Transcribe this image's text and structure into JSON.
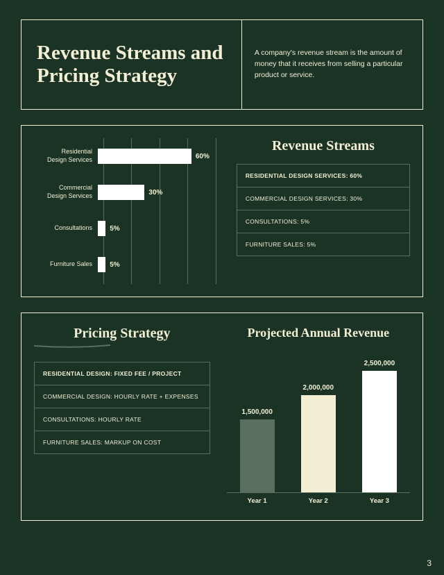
{
  "page_number": "3",
  "colors": {
    "background": "#1a3325",
    "text": "#f2efd5",
    "border": "#f2efd5",
    "inner_border": "#5a6e5f",
    "bar_white": "#ffffff"
  },
  "header": {
    "title": "Revenue Streams and Pricing Strategy",
    "description": "A company's revenue stream is the amount of money that it receives from selling a particular product or service."
  },
  "revenue_streams": {
    "section_title": "Revenue Streams",
    "chart": {
      "type": "horizontal_bar",
      "max_percent": 80,
      "gridline_positions_pct": [
        0,
        25,
        50,
        75,
        100
      ],
      "bars": [
        {
          "label": "Residential\nDesign Services",
          "value": 60,
          "display": "60%",
          "color": "#ffffff"
        },
        {
          "label": "Commercial\nDesign Services",
          "value": 30,
          "display": "30%",
          "color": "#ffffff"
        },
        {
          "label": "Consultations",
          "value": 5,
          "display": "5%",
          "color": "#ffffff"
        },
        {
          "label": "Furniture Sales",
          "value": 5,
          "display": "5%",
          "color": "#ffffff"
        }
      ]
    },
    "list": [
      "RESIDENTIAL DESIGN SERVICES: 60%",
      "COMMERCIAL DESIGN SERVICES: 30%",
      "CONSULTATIONS: 5%",
      "FURNITURE SALES: 5%"
    ]
  },
  "pricing_strategy": {
    "section_title": "Pricing Strategy",
    "list": [
      "RESIDENTIAL DESIGN: FIXED FEE / PROJECT",
      "COMMERCIAL DESIGN: HOURLY RATE + EXPENSES",
      "CONSULTATIONS: HOURLY RATE",
      "FURNITURE SALES: MARKUP ON COST"
    ]
  },
  "projected_revenue": {
    "section_title": "Projected Annual Revenue",
    "chart": {
      "type": "vertical_bar",
      "max_value": 2500000,
      "bars": [
        {
          "label": "Year 1",
          "value": 1500000,
          "display": "1,500,000",
          "color": "#5a6e5f"
        },
        {
          "label": "Year 2",
          "value": 2000000,
          "display": "2,000,000",
          "color": "#f2efd5"
        },
        {
          "label": "Year 3",
          "value": 2500000,
          "display": "2,500,000",
          "color": "#ffffff"
        }
      ]
    }
  }
}
